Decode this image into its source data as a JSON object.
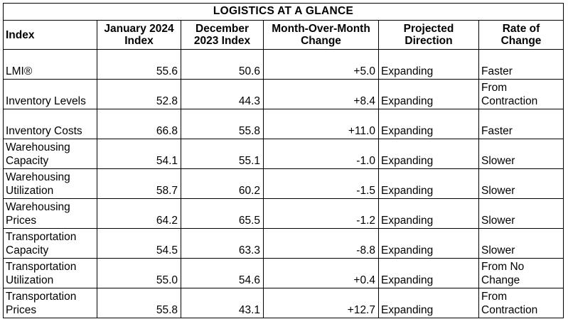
{
  "title": "LOGISTICS AT A GLANCE",
  "headers": [
    "Index",
    "January 2024 Index",
    "December 2023 Index",
    "Month-Over-Month Change",
    "Projected Direction",
    "Rate of Change"
  ],
  "rows": [
    [
      "LMI®",
      "55.6",
      "50.6",
      "+5.0",
      "Expanding",
      "Faster"
    ],
    [
      "Inventory Levels",
      "52.8",
      "44.3",
      "+8.4",
      "Expanding",
      "From Contraction"
    ],
    [
      "Inventory Costs",
      "66.8",
      "55.8",
      "+11.0",
      "Expanding",
      "Faster"
    ],
    [
      "Warehousing Capacity",
      "54.1",
      "55.1",
      "-1.0",
      "Expanding",
      "Slower"
    ],
    [
      "Warehousing Utilization",
      "58.7",
      "60.2",
      "-1.5",
      "Expanding",
      "Slower"
    ],
    [
      "Warehousing Prices",
      "64.2",
      "65.5",
      "-1.2",
      "Expanding",
      "Slower"
    ],
    [
      "Transportation Capacity",
      "54.5",
      "63.3",
      "-8.8",
      "Expanding",
      "Slower"
    ],
    [
      "Transportation Utilization",
      "55.0",
      "54.6",
      "+0.4",
      "Expanding",
      "From No Change"
    ],
    [
      "Transportation Prices",
      "55.8",
      "43.1",
      "+12.7",
      "Expanding",
      "From Contraction"
    ]
  ]
}
